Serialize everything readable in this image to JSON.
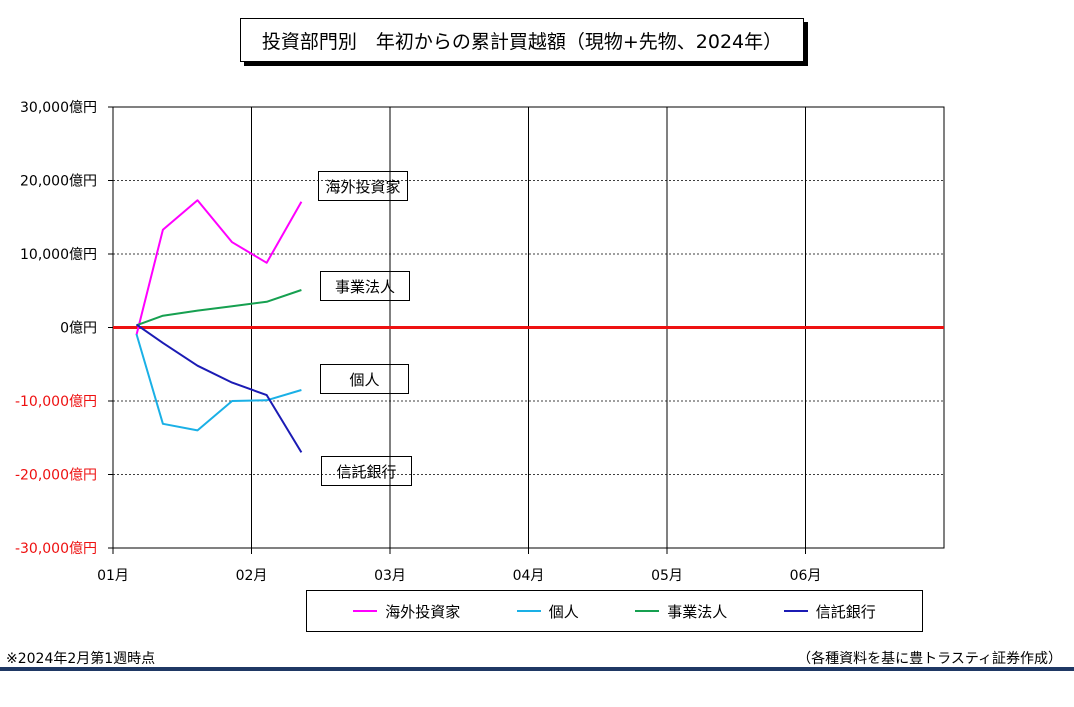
{
  "chart_data": {
    "type": "line",
    "title": "投資部門別　年初からの累計買越額（現物+先物、2024年）",
    "x_ticks": [
      "01月",
      "02月",
      "03月",
      "04月",
      "05月",
      "06月"
    ],
    "y_ticks": [
      "30,000億円",
      "20,000億円",
      "10,000億円",
      "0億円",
      "-10,000億円",
      "-20,000億円",
      "-30,000億円"
    ],
    "ylim": [
      -30000,
      30000
    ],
    "xlim": [
      0,
      6
    ],
    "grid": true,
    "zero_line_color": "#ee1111",
    "series": [
      {
        "name": "海外投資家",
        "color": "#ff00ff",
        "x": [
          0.17,
          0.36,
          0.61,
          0.86,
          1.11,
          1.36
        ],
        "values": [
          -1000,
          13300,
          17300,
          11600,
          8800,
          17100
        ]
      },
      {
        "name": "個人",
        "color": "#1ab0e6",
        "x": [
          0.17,
          0.36,
          0.61,
          0.86,
          1.11,
          1.36
        ],
        "values": [
          -900,
          -13100,
          -14000,
          -10000,
          -9900,
          -8500
        ]
      },
      {
        "name": "事業法人",
        "color": "#16a050",
        "x": [
          0.17,
          0.36,
          0.61,
          0.86,
          1.11,
          1.36
        ],
        "values": [
          300,
          1600,
          2300,
          2900,
          3500,
          5100
        ]
      },
      {
        "name": "信託銀行",
        "color": "#1b1bb4",
        "x": [
          0.17,
          0.36,
          0.61,
          0.86,
          1.11,
          1.36
        ],
        "values": [
          400,
          -2100,
          -5200,
          -7500,
          -9200,
          -17000
        ]
      }
    ],
    "callouts": [
      {
        "label": "海外投資家",
        "bg": "#ffccff"
      },
      {
        "label": "事業法人",
        "bg": "#ccffcc"
      },
      {
        "label": "個人",
        "bg": "#ccffff"
      },
      {
        "label": "信託銀行",
        "bg": "#00b0f0"
      }
    ],
    "legend": {
      "placement": "bottom",
      "entries": [
        "海外投資家",
        "個人",
        "事業法人",
        "信託銀行"
      ]
    }
  },
  "footnote": "※2024年2月第1週時点",
  "source": "（各種資料を基に豊トラスティ証券作成）"
}
